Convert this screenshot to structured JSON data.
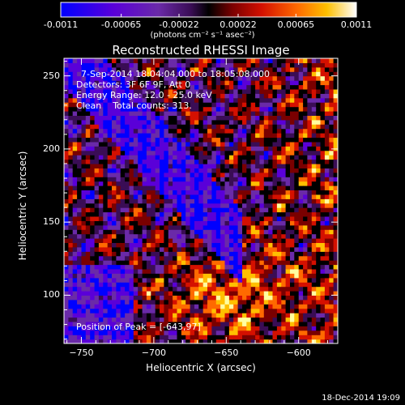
{
  "chart_data": {
    "type": "heatmap",
    "title": "Reconstructed RHESSI Image",
    "xlabel": "Heliocentric X (arcsec)",
    "ylabel": "Heliocentric Y (arcsec)",
    "xlim": [
      -762,
      -573
    ],
    "ylim": [
      67,
      262
    ],
    "x_ticks": [
      -750,
      -700,
      -650,
      -600
    ],
    "y_ticks": [
      100,
      150,
      200,
      250
    ],
    "colorbar": {
      "label": "(photons cm⁻² s⁻¹ asec⁻²)",
      "ticks": [
        "-0.0011",
        "-0.00065",
        "-0.00022",
        "0.00022",
        "0.00065",
        "0.0011"
      ],
      "range": [
        -0.0011,
        0.0011
      ]
    },
    "annotations": [
      "7-Sep-2014 18:04:04.000 to 18:05:08.000",
      "Detectors: 3F 6F 9F, Att 0",
      "Energy Range: 12.0 - 25.0 keV",
      "Clean    Total counts: 313."
    ],
    "peak_text": "Position of Peak = [-643,97]",
    "peak": [
      -643,
      97
    ]
  },
  "timestamp": "18-Dec-2014 19:09",
  "colors": {
    "c0": "#0000ff",
    "c1": "#5a00d8",
    "c2": "#6a2aa8",
    "c3": "#3a0d55",
    "c4": "#000000",
    "c5": "#7a0000",
    "c6": "#d41000",
    "c7": "#ff6a00",
    "c8": "#ffc000",
    "c9": "#ffffa0"
  }
}
